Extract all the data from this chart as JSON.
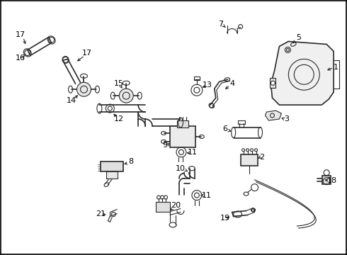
{
  "background_color": "#ffffff",
  "line_color": "#2a2a2a",
  "fig_width": 4.9,
  "fig_height": 3.6,
  "dpi": 100,
  "ylim_max": 360,
  "xlim_max": 490
}
